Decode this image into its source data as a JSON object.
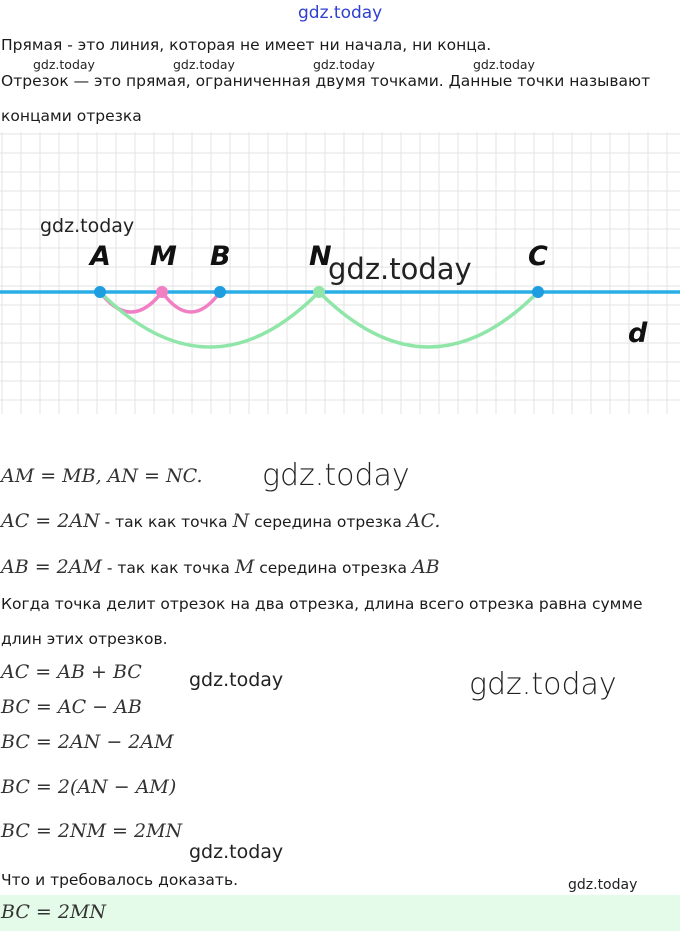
{
  "header_watermark": "gdz.today",
  "watermarks": {
    "w1": "gdz.today",
    "w2": "gdz.today",
    "w3": "gdz.today",
    "w4": "gdz.today",
    "fig": "gdz.today",
    "fig_big": "gdz.today",
    "eq_big": "gdz.today",
    "mid_small": "gdz.today",
    "mid_big": "gdz.today",
    "bottom1": "gdz.today",
    "bottom2": "gdz.today"
  },
  "definitions": {
    "line": "Прямая - это линия, которая не имеет ни начала, ни конца.",
    "segment_1": "Отрезок — это прямая, ограниченная двумя точками. Данные точки называют",
    "segment_2": "концами отрезка"
  },
  "figure": {
    "points": [
      "A",
      "M",
      "B",
      "N",
      "C"
    ],
    "line_label": "d",
    "colors": {
      "line": "#29aee6",
      "point": "#1e9ee0",
      "arc_pink": "#f07fc3",
      "arc_green": "#8fe6a8",
      "grid": "#e3e3e3"
    }
  },
  "math": {
    "eq1": "AM = MB, AN = NC.",
    "eq2_math": "AC = 2AN",
    "eq2_text": " - так как точка ",
    "eq2_point": "N",
    "eq2_text2": " середина отрезка ",
    "eq2_seg": "AC.",
    "eq3_math": "AB = 2AM",
    "eq3_text": " - так как точка ",
    "eq3_point": "M",
    "eq3_text2": " середина отрезка ",
    "eq3_seg": "AB",
    "rule_1": "Когда точка делит отрезок на два отрезка, длина всего отрезка равна сумме",
    "rule_2": "длин этих отрезков.",
    "eq4": "AC = AB + BC",
    "eq5": "BC = AC − AB",
    "eq6": "BC = 2AN − 2AM",
    "eq7": "BC = 2(AN − AM)",
    "eq8": "BC = 2NM = 2MN",
    "conclusion": "Что и требовалось доказать.",
    "result": "BC = 2MN"
  }
}
